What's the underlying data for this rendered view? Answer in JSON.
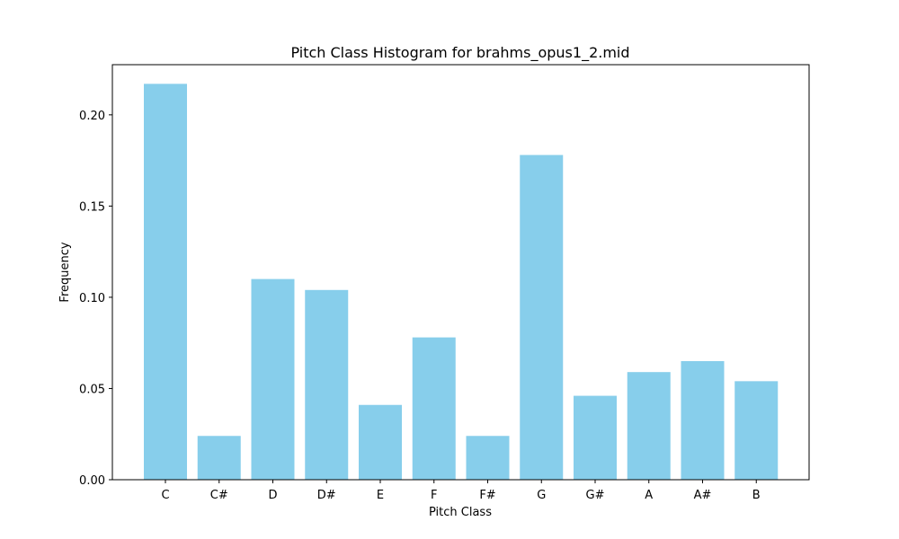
{
  "chart_data": {
    "type": "bar",
    "title": "Pitch Class Histogram for brahms_opus1_2.mid",
    "xlabel": "Pitch Class",
    "ylabel": "Frequency",
    "categories": [
      "C",
      "C#",
      "D",
      "D#",
      "E",
      "F",
      "F#",
      "G",
      "G#",
      "A",
      "A#",
      "B"
    ],
    "values": [
      0.217,
      0.024,
      0.11,
      0.104,
      0.041,
      0.078,
      0.024,
      0.178,
      0.046,
      0.059,
      0.065,
      0.054
    ],
    "ylim": [
      0,
      0.2275
    ],
    "yticks": [
      0.0,
      0.05,
      0.1,
      0.15,
      0.2
    ],
    "ytick_labels": [
      "0.00",
      "0.05",
      "0.10",
      "0.15",
      "0.20"
    ],
    "bar_color": "#87ceeb",
    "grid": false
  }
}
